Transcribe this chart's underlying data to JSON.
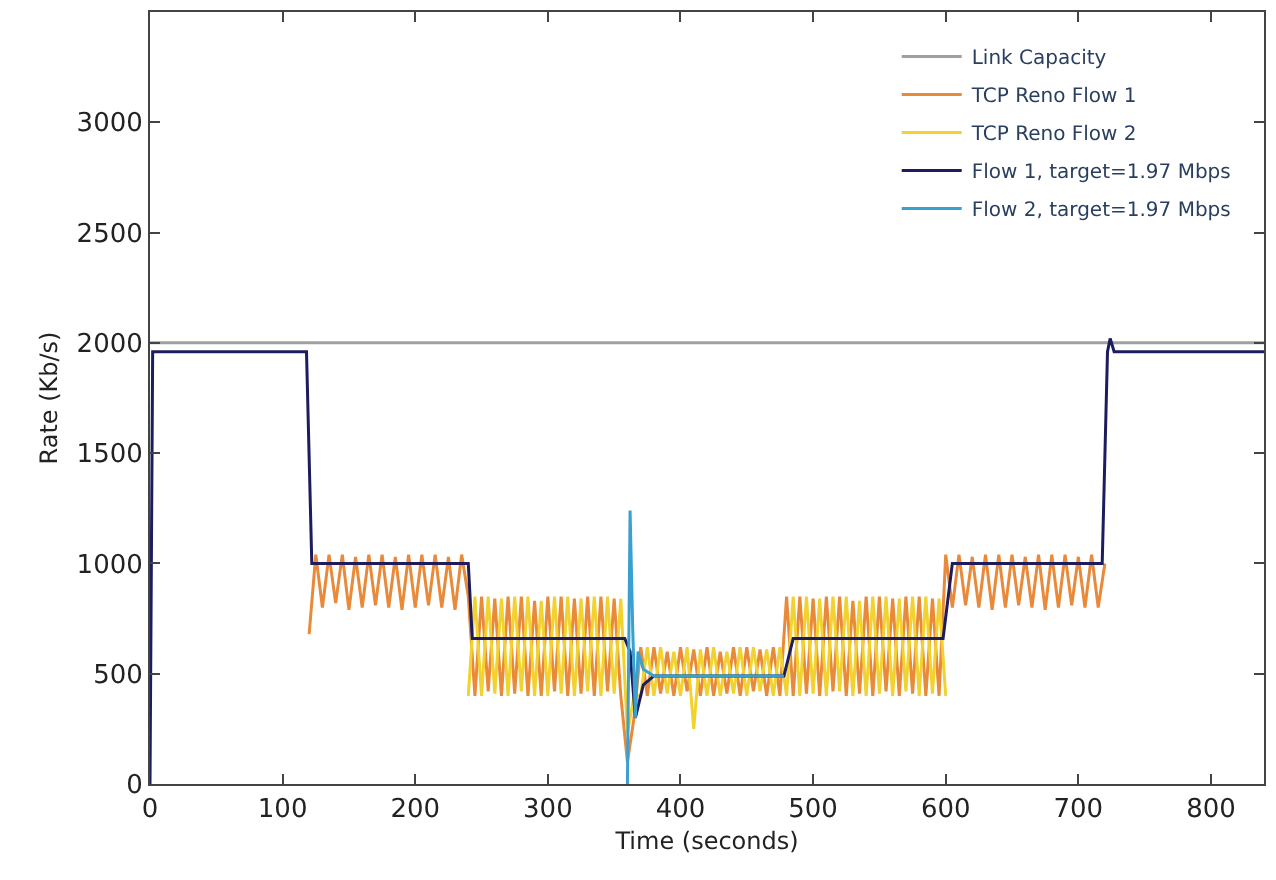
{
  "chart_data": {
    "type": "line",
    "xlabel": "Time (seconds)",
    "ylabel": "Rate (Kb/s)",
    "xlim": [
      0,
      840
    ],
    "ylim": [
      0,
      3500
    ],
    "xticks": [
      0,
      100,
      200,
      300,
      400,
      500,
      600,
      700,
      800
    ],
    "yticks": [
      0,
      500,
      1000,
      1500,
      2000,
      2500,
      3000
    ],
    "grid": false,
    "legend": "top right",
    "marker": "none",
    "line_style": "solid",
    "series": [
      {
        "name": "Link Capacity",
        "color": "#a0a0a0",
        "x": [
          0,
          840
        ],
        "values": [
          2000,
          2000
        ]
      },
      {
        "name": "TCP Reno Flow 1",
        "color": "#e88a3a",
        "x": [
          120,
          125,
          130,
          135,
          140,
          145,
          150,
          155,
          160,
          165,
          170,
          175,
          180,
          185,
          190,
          195,
          200,
          205,
          210,
          215,
          220,
          225,
          230,
          235,
          240,
          245,
          250,
          255,
          260,
          265,
          270,
          275,
          280,
          285,
          290,
          295,
          300,
          305,
          310,
          315,
          320,
          325,
          330,
          335,
          340,
          345,
          350,
          355,
          360,
          365,
          370,
          375,
          380,
          385,
          390,
          395,
          400,
          405,
          410,
          415,
          420,
          425,
          430,
          435,
          440,
          445,
          450,
          455,
          460,
          465,
          470,
          475,
          480,
          485,
          490,
          495,
          500,
          505,
          510,
          515,
          520,
          525,
          530,
          535,
          540,
          545,
          550,
          555,
          560,
          565,
          570,
          575,
          580,
          585,
          590,
          595,
          600,
          605,
          610,
          615,
          620,
          625,
          630,
          635,
          640,
          645,
          650,
          655,
          660,
          665,
          670,
          675,
          680,
          685,
          690,
          695,
          700,
          705,
          710,
          715,
          720
        ],
        "values": [
          680,
          1040,
          800,
          1040,
          820,
          1040,
          790,
          1030,
          800,
          1040,
          810,
          1040,
          800,
          1030,
          790,
          1040,
          800,
          1040,
          810,
          1040,
          800,
          1030,
          790,
          1040,
          850,
          400,
          850,
          420,
          840,
          400,
          850,
          410,
          850,
          400,
          830,
          400,
          850,
          420,
          850,
          400,
          840,
          410,
          850,
          400,
          850,
          420,
          840,
          400,
          100,
          300,
          620,
          400,
          620,
          410,
          600,
          400,
          620,
          420,
          610,
          400,
          620,
          400,
          600,
          410,
          620,
          400,
          620,
          420,
          610,
          400,
          620,
          400,
          850,
          400,
          850,
          410,
          840,
          400,
          850,
          420,
          850,
          400,
          830,
          410,
          850,
          400,
          850,
          420,
          840,
          400,
          850,
          410,
          850,
          400,
          840,
          400,
          1040,
          800,
          1040,
          810,
          1030,
          800,
          1040,
          790,
          1040,
          800,
          1040,
          810,
          1030,
          800,
          1040,
          790,
          1040,
          800,
          1040,
          810,
          1030,
          800,
          1040,
          800,
          1000
        ]
      },
      {
        "name": "TCP Reno Flow 2",
        "color": "#f2d22e",
        "x": [
          240,
          245,
          250,
          255,
          260,
          265,
          270,
          275,
          280,
          285,
          290,
          295,
          300,
          305,
          310,
          315,
          320,
          325,
          330,
          335,
          340,
          345,
          350,
          355,
          360,
          365,
          370,
          375,
          380,
          385,
          390,
          395,
          400,
          405,
          410,
          415,
          420,
          425,
          430,
          435,
          440,
          445,
          450,
          455,
          460,
          465,
          470,
          475,
          480,
          485,
          490,
          495,
          500,
          505,
          510,
          515,
          520,
          525,
          530,
          535,
          540,
          545,
          550,
          555,
          560,
          565,
          570,
          575,
          580,
          585,
          590,
          595,
          600
        ],
        "values": [
          400,
          850,
          400,
          850,
          410,
          840,
          400,
          850,
          420,
          850,
          400,
          830,
          400,
          850,
          410,
          850,
          400,
          840,
          420,
          850,
          400,
          850,
          410,
          840,
          230,
          400,
          400,
          620,
          400,
          620,
          410,
          600,
          400,
          620,
          250,
          610,
          400,
          620,
          400,
          600,
          410,
          620,
          400,
          620,
          420,
          610,
          400,
          620,
          400,
          850,
          400,
          850,
          410,
          840,
          400,
          850,
          420,
          850,
          400,
          830,
          400,
          850,
          410,
          850,
          400,
          840,
          420,
          850,
          400,
          850,
          410,
          840,
          400
        ]
      },
      {
        "name": "Flow 1, target=1.97 Mbps",
        "color": "#1c1c5e",
        "x": [
          0,
          2,
          118,
          122,
          240,
          243,
          358,
          362,
          366,
          372,
          380,
          478,
          485,
          598,
          605,
          718,
          722,
          724,
          727,
          840
        ],
        "values": [
          0,
          1960,
          1960,
          1000,
          1000,
          660,
          660,
          600,
          300,
          450,
          490,
          490,
          660,
          660,
          1000,
          1000,
          1960,
          2020,
          1960,
          1960
        ]
      },
      {
        "name": "Flow 2, target=1.97 Mbps",
        "color": "#3aa0d0",
        "x": [
          360,
          362,
          364,
          366,
          368,
          372,
          380,
          478
        ],
        "values": [
          0,
          1240,
          700,
          300,
          600,
          520,
          490,
          490
        ]
      }
    ]
  }
}
